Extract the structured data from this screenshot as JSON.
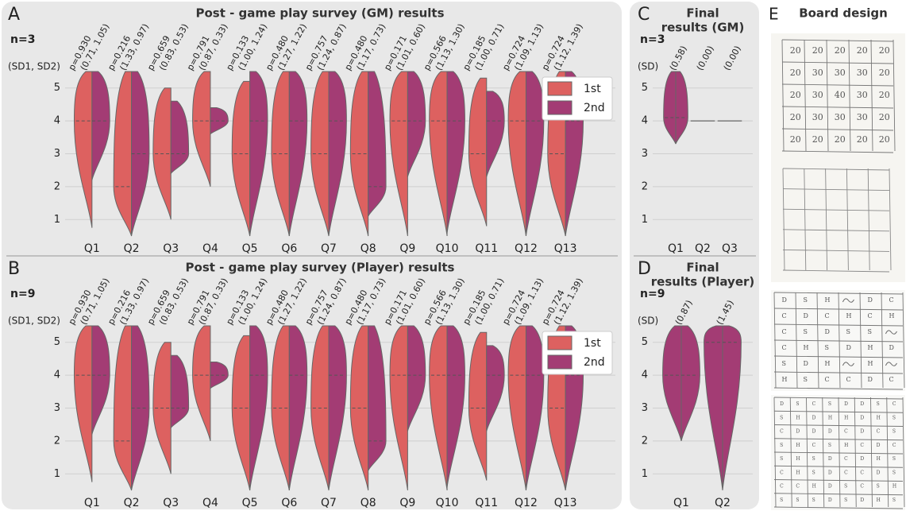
{
  "chart_data": [
    {
      "type": "violin",
      "panel_label": "A",
      "title": "Post - game play survey (GM) results",
      "n_label": "n=3",
      "sd_header": "(SD1, SD2)",
      "categories": [
        "Q1",
        "Q2",
        "Q3",
        "Q4",
        "Q5",
        "Q6",
        "Q7",
        "Q8",
        "Q9",
        "Q10",
        "Q11",
        "Q12",
        "Q13"
      ],
      "p_values": [
        "p=0.930",
        "p=0.216",
        "p=0.659",
        "p=0.791",
        "p=0.133",
        "p=0.480",
        "p=0.757",
        "p=0.480",
        "p=0.171",
        "p=0.566",
        "p=0.185",
        "p=0.724",
        "p=0.724"
      ],
      "sd_labels": [
        "(0.71, 1.05)",
        "(1.33, 0.97)",
        "(0.83, 0.53)",
        "(0.87, 0.33)",
        "(1.00, 1.24)",
        "(1.27, 1.22)",
        "(1.24, 0.87)",
        "(1.17, 0.73)",
        "(1.01, 0.60)",
        "(1.13, 1.30)",
        "(1.00, 0.71)",
        "(1.09, 1.13)",
        "(1.12, 1.39)"
      ],
      "ylim": [
        0.5,
        5.5
      ],
      "yticks": [
        1,
        2,
        3,
        4,
        5
      ],
      "grid": true,
      "legend": "upper right",
      "series": [
        {
          "name": "1st",
          "color": "#dd6160",
          "min": [
            0.75,
            0.5,
            1,
            2,
            0.5,
            0.5,
            0.5,
            0.5,
            0.5,
            0.5,
            0.8,
            0.5,
            0.5
          ],
          "max": [
            5.5,
            5.5,
            5,
            5.5,
            5.2,
            5.5,
            5.5,
            5.5,
            5.5,
            5.5,
            5.3,
            5.5,
            5.5
          ],
          "median": [
            4,
            2,
            3,
            4,
            3,
            3,
            3,
            3,
            4,
            4,
            3,
            4,
            3
          ]
        },
        {
          "name": "2nd",
          "color": "#a33c74",
          "min": [
            2.2,
            0.5,
            2.4,
            3.6,
            0.5,
            0.5,
            0.5,
            1.1,
            2.3,
            0.6,
            2.3,
            0.5,
            0.5
          ],
          "max": [
            5.5,
            5.5,
            4.6,
            4.4,
            5.5,
            5.5,
            5.5,
            5.5,
            5.5,
            5.5,
            4.9,
            5.5,
            5.5
          ],
          "median": [
            4,
            3,
            3,
            4,
            4,
            4,
            4,
            2,
            4,
            4,
            4,
            4,
            4
          ]
        }
      ]
    },
    {
      "type": "violin",
      "panel_label": "B",
      "title": "Post - game play survey (Player) results",
      "n_label": "n=9",
      "sd_header": "(SD1, SD2)",
      "categories": [
        "Q1",
        "Q2",
        "Q3",
        "Q4",
        "Q5",
        "Q6",
        "Q7",
        "Q8",
        "Q9",
        "Q10",
        "Q11",
        "Q12",
        "Q13"
      ],
      "p_values": [
        "p=0.930",
        "p=0.216",
        "p=0.659",
        "p=0.791",
        "p=0.133",
        "p=0.480",
        "p=0.757",
        "p=0.480",
        "p=0.171",
        "p=0.566",
        "p=0.185",
        "p=0.724",
        "p=0.724"
      ],
      "sd_labels": [
        "(0.71, 1.05)",
        "(1.33, 0.97)",
        "(0.83, 0.53)",
        "(0.87, 0.33)",
        "(1.00, 1.24)",
        "(1.27, 1.22)",
        "(1.24, 0.87)",
        "(1.17, 0.73)",
        "(1.01, 0.60)",
        "(1.13, 1.30)",
        "(1.00, 0.71)",
        "(1.09, 1.13)",
        "(1.12, 1.39)"
      ],
      "ylim": [
        0.5,
        5.5
      ],
      "yticks": [
        1,
        2,
        3,
        4,
        5
      ],
      "grid": true,
      "legend": "upper right",
      "series": [
        {
          "name": "1st",
          "color": "#dd6160",
          "min": [
            0.75,
            0.5,
            1,
            2,
            0.5,
            0.5,
            0.5,
            0.5,
            0.5,
            0.5,
            0.8,
            0.5,
            0.5
          ],
          "max": [
            5.5,
            5.5,
            5,
            5.5,
            5.2,
            5.5,
            5.5,
            5.5,
            5.5,
            5.5,
            5.3,
            5.5,
            5.5
          ],
          "median": [
            4,
            2,
            3,
            4,
            3,
            3,
            3,
            3,
            4,
            4,
            3,
            4,
            3
          ]
        },
        {
          "name": "2nd",
          "color": "#a33c74",
          "min": [
            2.2,
            0.5,
            2.4,
            3.6,
            0.5,
            0.5,
            0.5,
            1.1,
            2.3,
            0.6,
            2.3,
            0.5,
            0.5
          ],
          "max": [
            5.5,
            5.5,
            4.6,
            4.4,
            5.5,
            5.5,
            5.5,
            5.5,
            5.5,
            5.5,
            4.9,
            5.5,
            5.5
          ],
          "median": [
            4,
            3,
            3,
            4,
            4,
            4,
            4,
            2,
            4,
            4,
            4,
            4,
            4
          ]
        }
      ]
    },
    {
      "type": "violin",
      "panel_label": "C",
      "title_lines": [
        "Final",
        "results (GM)"
      ],
      "n_label": "n=3",
      "sd_header": "(SD)",
      "categories": [
        "Q1",
        "Q2",
        "Q3"
      ],
      "sd_labels": [
        "(0.58)",
        "(0.00)",
        "(0.00)"
      ],
      "ylim": [
        0.5,
        5.5
      ],
      "yticks": [
        1,
        2,
        3,
        4,
        5
      ],
      "grid": true,
      "series": [
        {
          "color": "#a33c74",
          "min": [
            3.3,
            4,
            4
          ],
          "max": [
            5.5,
            4,
            4
          ],
          "median": [
            4.1,
            4,
            4
          ]
        }
      ]
    },
    {
      "type": "violin",
      "panel_label": "D",
      "title_lines": [
        "Final",
        "results (Player)"
      ],
      "n_label": "n=9",
      "sd_header": "(SD)",
      "categories": [
        "Q1",
        "Q2"
      ],
      "sd_labels": [
        "(0.87)",
        "(1.45)"
      ],
      "ylim": [
        0.5,
        5.5
      ],
      "yticks": [
        1,
        2,
        3,
        4,
        5
      ],
      "grid": true,
      "series": [
        {
          "color": "#a33c74",
          "min": [
            2,
            0.5
          ],
          "max": [
            5.5,
            5.5
          ],
          "median": [
            4,
            5
          ]
        }
      ]
    }
  ],
  "board_design": {
    "panel_label": "E",
    "title": "Board design",
    "board1": [
      [
        "20",
        "20",
        "20",
        "20",
        "20"
      ],
      [
        "20",
        "30",
        "30",
        "30",
        "20"
      ],
      [
        "20",
        "30",
        "40",
        "30",
        "20"
      ],
      [
        "20",
        "30",
        "30",
        "30",
        "20"
      ],
      [
        "20",
        "20",
        "20",
        "20",
        "20"
      ]
    ],
    "board3": [
      [
        "D",
        "S",
        "H",
        null,
        "D",
        "C"
      ],
      [
        "C",
        "D",
        "C",
        "H",
        "C",
        "H"
      ],
      [
        "C",
        "S",
        "D",
        "S",
        "S",
        null
      ],
      [
        "C",
        "H",
        "S",
        "D",
        "H",
        "D"
      ],
      [
        "S",
        "D",
        "H",
        null,
        "H",
        null
      ],
      [
        "H",
        "S",
        "C",
        "C",
        "D",
        "C"
      ]
    ],
    "board4": [
      [
        "D",
        "S",
        "C",
        "S",
        "D",
        "D",
        "S",
        "C"
      ],
      [
        "S",
        "H",
        "D",
        "H",
        "H",
        "D",
        "H",
        "S"
      ],
      [
        "C",
        "D",
        "D",
        "D",
        "C",
        "D",
        "C",
        "S"
      ],
      [
        "S",
        "H",
        "C",
        "S",
        "H",
        "C",
        "D",
        "C"
      ],
      [
        "S",
        "H",
        "S",
        "D",
        "C",
        "D",
        "H",
        "S"
      ],
      [
        "C",
        "H",
        "S",
        "D",
        "C",
        "C",
        "D",
        "S"
      ],
      [
        "C",
        "C",
        "H",
        "D",
        "S",
        "C",
        "S",
        "H"
      ],
      [
        "S",
        "S",
        "S",
        "D",
        "S",
        "D",
        "H",
        "S"
      ]
    ]
  }
}
